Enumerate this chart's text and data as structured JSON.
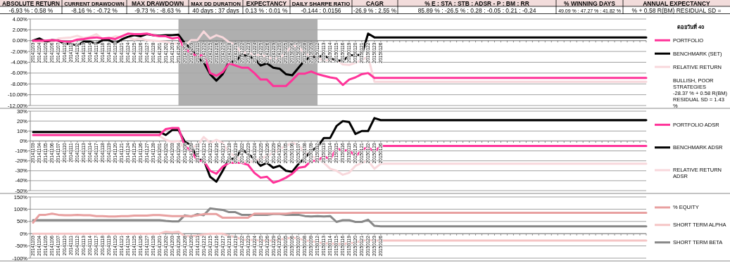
{
  "chart_data": [
    {
      "type": "other",
      "annotations": [
        "ABSOLUTE RETURN",
        "CURRENT DRAWDOWN",
        "MAX DRAWDOWN",
        "MAX DD DURATION",
        "EXPECTANCY",
        "DAILY SHARPE RATIO",
        "CAGR",
        "% E : STA : STB : ADSR - P : BM : RR",
        "% WINNING DAYS",
        "ANNUAL EXPECTANCY",
        "-6.93 % : 0.58 %",
        "-8.16 % : -0.72 %",
        "-9.73 % : -8.63 %",
        "40 days : 37 days",
        "0.13 % : 0.01 %",
        "-0.144 : 0.0156",
        "-26.9 % : 2.55 %",
        "85.89 % : -26.5 % : 0.28 : -0.05 : 0.21 : -0.24",
        "49.09 % : 47.27 % : 41.82 %",
        "% + 0.58 R(BM) RESIDUAL SD ="
      ]
    },
    {
      "type": "line",
      "legend_title": "ดอยวันที่ 40",
      "legend": "right",
      "grid": "y",
      "annotations": [
        "BULLISH, POOR STRATEGIES",
        "-28.37 % + 0.58 R(BM) RESIDUAL SD = 1.43 %"
      ],
      "categories": [
        "20141103",
        "20141104",
        "20141105",
        "20141106",
        "20141107",
        "20141110",
        "20141111",
        "20141112",
        "20141113",
        "20141114",
        "20141117",
        "20141118",
        "20141119",
        "20141120",
        "20141121",
        "20141124",
        "20141125",
        "20141126",
        "20141127",
        "20141128",
        "20141201",
        "20141202",
        "20141203",
        "20141204",
        "20141208",
        "20141209",
        "20141211",
        "20141212",
        "20141215",
        "20141216",
        "20141217",
        "20141218",
        "20141219",
        "20141222",
        "20141223",
        "20141224",
        "20141225",
        "20141226",
        "20141229",
        "20141230",
        "20150105",
        "20150106",
        "20150107",
        "20150108",
        "20150109",
        "20150112",
        "20150113",
        "20150114",
        "20150115",
        "20150116",
        "20150119",
        "20150120",
        "20150121",
        "20150122",
        "20150123",
        "20150126",
        null,
        null,
        null,
        null,
        null,
        null,
        null,
        null,
        null,
        null,
        null,
        null,
        null,
        null,
        null,
        null,
        null,
        null,
        null,
        null,
        null,
        null,
        null,
        null,
        null,
        null,
        null,
        null,
        null,
        null,
        null,
        null,
        null,
        null,
        null,
        null,
        null,
        null,
        null,
        null,
        null,
        null
      ],
      "ylim": [
        -12,
        4
      ],
      "yticks": [
        {
          "value": 4,
          "label": "4.00%"
        },
        {
          "value": 2,
          "label": "2.00%"
        },
        {
          "value": 0,
          "label": "0.00%"
        },
        {
          "value": -2,
          "label": "-2.00%"
        },
        {
          "value": -4,
          "label": "-4.00%"
        },
        {
          "value": -6,
          "label": "-6.00%"
        },
        {
          "value": -8,
          "label": "-8.00%"
        },
        {
          "value": -10,
          "label": "-10.00%"
        },
        {
          "value": -12,
          "label": "-12.00%"
        }
      ],
      "bands": [
        {
          "axis": "x",
          "from": "20141204",
          "to": "20150112",
          "color": "#a6a6a6"
        }
      ],
      "series": [
        {
          "name": "PORTFOLIO",
          "color": "#ff3399",
          "values": [
            0,
            0,
            0,
            0.1,
            0,
            -0.2,
            -0.2,
            0.2,
            0.3,
            0.5,
            0.6,
            0.4,
            0.5,
            0.3,
            0.8,
            1.3,
            1.2,
            1.2,
            1.3,
            1.0,
            0.8,
            0.8,
            0.4,
            0.6,
            -1.6,
            -2.2,
            -3.0,
            -2.5,
            -6.0,
            -6.5,
            -5.8,
            -4.2,
            -4.6,
            -5.0,
            -5.0,
            -6.0,
            -7.2,
            -7.2,
            -8.4,
            -8.4,
            -8.4,
            -7.3,
            -6.1,
            -6.1,
            -5.7,
            -6.2,
            -6.5,
            -6.8,
            -7.0,
            -8.2,
            -7.2,
            -6.8,
            -6.2,
            -6.0,
            -6.9,
            -6.9,
            -6.9,
            -6.9,
            -6.9,
            -6.9,
            -6.9,
            -6.9,
            -6.9,
            -6.9,
            -6.9,
            -6.9,
            -6.9,
            -6.9,
            -6.9,
            -6.9,
            -6.9,
            -6.9,
            -6.9,
            -6.9,
            -6.9,
            -6.9,
            -6.9,
            -6.9,
            -6.9,
            -6.9,
            -6.9,
            -6.9,
            -6.9,
            -6.9,
            -6.9,
            -6.9,
            -6.9,
            -6.9,
            -6.9,
            -6.9,
            -6.9,
            -6.9,
            -6.9,
            -6.9,
            -6.9,
            -6.9,
            -6.9,
            -6.9
          ]
        },
        {
          "name": "BENCHMARK (SET)",
          "color": "#000000",
          "values": [
            0,
            0.4,
            -0.2,
            0.1,
            0,
            -0.6,
            -0.6,
            -0.9,
            -0.2,
            -0.2,
            -0.6,
            0.1,
            0.1,
            -0.5,
            0.2,
            0.7,
            1.0,
            0.8,
            1.2,
            1.0,
            0.9,
            1.0,
            1.0,
            1.1,
            -0.5,
            -1.5,
            -3.2,
            -4.0,
            -6.2,
            -7.4,
            -6.2,
            -3.9,
            -3.9,
            -2.6,
            -2.9,
            -3.3,
            -4.6,
            -4.2,
            -5.0,
            -5.2,
            -6.2,
            -6.4,
            -5.0,
            -3.6,
            -3.0,
            -3.0,
            -2.8,
            -3.3,
            -3.6,
            -3.8,
            -2.7,
            -2.7,
            -2.6,
            1.3,
            0.6,
            0.6,
            0.6,
            0.6,
            0.6,
            0.6,
            0.6,
            0.6,
            0.6,
            0.6,
            0.6,
            0.6,
            0.6,
            0.6,
            0.6,
            0.6,
            0.6,
            0.6,
            0.6,
            0.6,
            0.6,
            0.6,
            0.6,
            0.6,
            0.6,
            0.6,
            0.6,
            0.6,
            0.6,
            0.6,
            0.6,
            0.6,
            0.6,
            0.6,
            0.6,
            0.6,
            0.6,
            0.6,
            0.6,
            0.6,
            0.6,
            0.6,
            0.6,
            0.6
          ]
        },
        {
          "name": "RELATIVE RETURN",
          "color": "#f8d8dc",
          "values": [
            0,
            -0.4,
            -0.2,
            -0.3,
            0.4,
            0.5,
            0.6,
            0.9,
            0.5,
            0.7,
            1.2,
            0.3,
            0.4,
            0.8,
            0.6,
            0.6,
            0.2,
            0.4,
            0.1,
            0,
            -0.1,
            -0.2,
            -0.6,
            -0.5,
            -1.0,
            0.1,
            0.1,
            1.7,
            0.4,
            1.0,
            0.6,
            -0.3,
            -0.7,
            -2.4,
            -2.1,
            -2.7,
            -2.6,
            -3.0,
            -3.4,
            -3.2,
            -2.2,
            -0.9,
            -1.1,
            -2.5,
            -2.7,
            -3.2,
            -3.7,
            -3.5,
            -3.4,
            -4.4,
            -4.5,
            -4.1,
            -3.6,
            -2.9,
            -7.6,
            -7.6,
            -7.6,
            -7.6,
            -7.6,
            -7.6,
            -7.6,
            -7.6,
            -7.6,
            -7.6,
            -7.6,
            -7.6,
            -7.6,
            -7.6,
            -7.6,
            -7.6,
            -7.6,
            -7.6,
            -7.6,
            -7.6,
            -7.6,
            -7.6,
            -7.6,
            -7.6,
            -7.6,
            -7.6,
            -7.6,
            -7.6,
            -7.6,
            -7.6,
            -7.6,
            -7.6,
            -7.6,
            -7.6,
            -7.6,
            -7.6,
            -7.6,
            -7.6,
            -7.6,
            -7.6,
            -7.6,
            -7.6,
            -7.6,
            -7.6
          ]
        }
      ]
    },
    {
      "type": "line",
      "legend": "right",
      "grid": "y",
      "categories": [
        "20141103",
        "20141104",
        "20141105",
        "20141106",
        "20141107",
        "20141110",
        "20141111",
        "20141112",
        "20141113",
        "20141114",
        "20141117",
        "20141118",
        "20141119",
        "20141120",
        "20141121",
        "20141124",
        "20141125",
        "20141126",
        "20141127",
        "20141128",
        "20141201",
        "20141202",
        "20141203",
        "20141204",
        "20141208",
        "20141209",
        "20141211",
        "20141212",
        "20141215",
        "20141216",
        "20141217",
        "20141218",
        "20141219",
        "20141222",
        "20141223",
        "20141224",
        "20141225",
        "20141226",
        "20141229",
        "20141230",
        "20150105",
        "20150106",
        "20150107",
        "20150108",
        "20150109",
        "20150112",
        "20150113",
        "20150114",
        "20150115",
        "20150116",
        "20150119",
        "20150120",
        "20150121",
        "20150122",
        "20150123",
        "20150126",
        null,
        null,
        null,
        null,
        null,
        null,
        null,
        null,
        null,
        null,
        null,
        null,
        null,
        null,
        null,
        null,
        null,
        null,
        null,
        null,
        null,
        null,
        null,
        null,
        null,
        null,
        null,
        null,
        null,
        null,
        null,
        null,
        null,
        null,
        null,
        null,
        null,
        null,
        null,
        null,
        null,
        null
      ],
      "ylim": [
        -50,
        30
      ],
      "yticks": [
        {
          "value": 30,
          "label": "30%"
        },
        {
          "value": 20,
          "label": "20%"
        },
        {
          "value": 10,
          "label": "10%"
        },
        {
          "value": 0,
          "label": "0%"
        },
        {
          "value": -10,
          "label": "-10%"
        },
        {
          "value": -20,
          "label": "-20%"
        },
        {
          "value": -30,
          "label": "-30%"
        },
        {
          "value": -40,
          "label": "-40%"
        },
        {
          "value": -50,
          "label": "-50%"
        }
      ],
      "series": [
        {
          "name": "PORTFOLIO ADSR",
          "color": "#ff3399",
          "values": [
            6,
            6,
            6,
            6,
            6,
            6,
            6,
            6,
            6,
            6,
            6,
            6,
            6,
            6,
            6,
            6,
            6,
            6,
            6,
            6,
            6,
            12,
            13,
            13,
            -5,
            -10,
            -20,
            -20,
            -30,
            -33,
            -26,
            -22,
            -22,
            -22,
            -24,
            -32,
            -37,
            -36,
            -42,
            -40,
            -37,
            -33,
            -27,
            -26,
            -20,
            -20,
            -15,
            -19,
            -7,
            -10,
            -9,
            -16,
            -9,
            -6,
            -11,
            -5,
            -5,
            -5,
            -5,
            -5,
            -5,
            -5,
            -5,
            -5,
            -5,
            -5,
            -5,
            -5,
            -5,
            -5,
            -5,
            -5,
            -5,
            -5,
            -5,
            -5,
            -5,
            -5,
            -5,
            -5,
            -5,
            -5,
            -5,
            -5,
            -5,
            -5,
            -5,
            -5,
            -5,
            -5,
            -5,
            -5,
            -5,
            -5,
            -5,
            -5,
            -5,
            -5
          ]
        },
        {
          "name": "BENCHMARK ADSR",
          "color": "#000000",
          "values": [
            9,
            9,
            9,
            9,
            9,
            9,
            9,
            9,
            9,
            9,
            9,
            9,
            9,
            9,
            9,
            9,
            9,
            9,
            9,
            9,
            9,
            6,
            11,
            11,
            -1,
            -4,
            -19,
            -19,
            -36,
            -41,
            -30,
            -18,
            -18,
            -8,
            -13,
            -18,
            -25,
            -22,
            -27,
            -25,
            -30,
            -31,
            -23,
            -17,
            -10,
            -6,
            3,
            3,
            15,
            20,
            19,
            7,
            10,
            10,
            23,
            21,
            21,
            21,
            21,
            21,
            21,
            21,
            21,
            21,
            21,
            21,
            21,
            21,
            21,
            21,
            21,
            21,
            21,
            21,
            21,
            21,
            21,
            21,
            21,
            21,
            21,
            21,
            21,
            21,
            21,
            21,
            21,
            21,
            21,
            21,
            21,
            21,
            21,
            21,
            21,
            21,
            21,
            21
          ]
        },
        {
          "name": "RELATIVE RETURN ADSR",
          "color": "#f8d8dc",
          "values": [
            null,
            null,
            null,
            null,
            null,
            null,
            null,
            null,
            null,
            null,
            null,
            null,
            null,
            null,
            null,
            null,
            null,
            null,
            null,
            null,
            5,
            1,
            -1,
            0,
            -8,
            -6,
            -5,
            4,
            -2,
            1,
            -2,
            -12,
            -15,
            -20,
            -22,
            -20,
            -18,
            -15,
            -12,
            -8,
            -5,
            -2,
            -4,
            -12,
            -15,
            -18,
            -22,
            -28,
            -30,
            -34,
            -32,
            -25,
            -22,
            -20,
            -28,
            -23,
            -23,
            -23,
            -23,
            -23,
            -23,
            -23,
            -23,
            -23,
            -23,
            -23,
            -23,
            -23,
            -23,
            -23,
            -23,
            -23,
            -23,
            -23,
            -23,
            -23,
            -23,
            -23,
            -23,
            -23,
            -23,
            -23,
            -23,
            -23,
            -23,
            -23,
            -23,
            -23,
            -23,
            -23,
            -23,
            -23,
            -23,
            -23,
            -23,
            -23,
            -23,
            -23
          ]
        }
      ]
    },
    {
      "type": "line",
      "legend": "right",
      "grid": "y",
      "categories": [
        "20141103",
        "20141104",
        "20141105",
        "20141106",
        "20141107",
        "20141110",
        "20141111",
        "20141112",
        "20141113",
        "20141114",
        "20141117",
        "20141118",
        "20141119",
        "20141120",
        "20141121",
        "20141124",
        "20141125",
        "20141126",
        "20141127",
        "20141128",
        "20141201",
        "20141202",
        "20141203",
        "20141204",
        "20141208",
        "20141209",
        "20141211",
        "20141212",
        "20141215",
        "20141216",
        "20141217",
        "20141218",
        "20141219",
        "20141222",
        "20141223",
        "20141224",
        "20141225",
        "20141226",
        "20141229",
        "20141230",
        "20150105",
        "20150106",
        "20150107",
        "20150108",
        "20150109",
        "20150112",
        "20150113",
        "20150114",
        "20150115",
        "20150116",
        "20150119",
        "20150120",
        "20150121",
        "20150122",
        "20150123",
        "20150126",
        null,
        null,
        null,
        null,
        null,
        null,
        null,
        null,
        null,
        null,
        null,
        null,
        null,
        null,
        null,
        null,
        null,
        null,
        null,
        null,
        null,
        null,
        null,
        null,
        null,
        null,
        null,
        null,
        null,
        null,
        null,
        null,
        null,
        null,
        null,
        null,
        null,
        null,
        null,
        null,
        null,
        null
      ],
      "ylim": [
        -100,
        150
      ],
      "yticks": [
        {
          "value": 150,
          "label": "150%"
        },
        {
          "value": 100,
          "label": "100%"
        },
        {
          "value": 50,
          "label": "50%"
        },
        {
          "value": 0,
          "label": "0%"
        },
        {
          "value": -50,
          "label": "-50%"
        },
        {
          "value": -100,
          "label": "-100%"
        }
      ],
      "series": [
        {
          "name": "% EQUITY",
          "color": "#e8a0a0",
          "values": [
            45,
            77,
            77,
            82,
            77,
            75,
            75,
            77,
            75,
            75,
            72,
            72,
            70,
            70,
            72,
            72,
            74,
            74,
            74,
            76,
            76,
            74,
            72,
            72,
            72,
            72,
            75,
            80,
            80,
            80,
            65,
            65,
            65,
            65,
            65,
            82,
            82,
            82,
            82,
            82,
            82,
            85,
            85,
            85,
            85,
            85,
            85,
            85,
            85,
            85,
            85,
            85,
            85,
            85,
            85,
            85,
            85,
            85,
            85,
            85,
            85,
            85,
            85,
            85,
            85,
            85,
            85,
            85,
            85,
            85,
            85,
            85,
            85,
            85,
            85,
            85,
            85,
            85,
            85,
            85,
            85,
            85,
            85,
            85,
            85,
            85,
            85,
            85,
            85,
            85,
            85,
            85,
            85,
            85,
            85,
            85,
            85,
            85
          ]
        },
        {
          "name": "SHORT TERM ALPHA",
          "color": "#f5c5c5",
          "values": [
            0,
            0,
            0,
            0,
            0,
            0,
            0,
            0,
            0,
            0,
            0,
            0,
            0,
            0,
            0,
            0,
            0,
            0,
            0,
            0,
            0,
            8,
            5,
            8,
            -10,
            -10,
            -8,
            -3,
            0,
            0,
            0,
            -10,
            -12,
            -25,
            -25,
            -25,
            -28,
            -28,
            -28,
            -25,
            -20,
            -15,
            -20,
            -28,
            -30,
            -35,
            -40,
            -40,
            -42,
            -42,
            -40,
            -35,
            -30,
            -25,
            -28,
            -28,
            -28,
            -28,
            -28,
            -28,
            -28,
            -28,
            -28,
            -28,
            -28,
            -28,
            -28,
            -28,
            -28,
            -28,
            -28,
            -28,
            -28,
            -28,
            -28,
            -28,
            -28,
            -28,
            -28,
            -28,
            -28,
            -28,
            -28,
            -28,
            -28,
            -28,
            -28,
            -28,
            -28,
            -28,
            -28,
            -28,
            -28,
            -28,
            -28,
            -28,
            -28,
            -28
          ]
        },
        {
          "name": "SHORT TERM BETA",
          "color": "#888888",
          "values": [
            55,
            55,
            55,
            55,
            55,
            55,
            55,
            55,
            55,
            55,
            55,
            55,
            55,
            55,
            55,
            55,
            55,
            55,
            55,
            55,
            55,
            52,
            50,
            50,
            75,
            70,
            80,
            75,
            103,
            100,
            97,
            88,
            88,
            77,
            77,
            77,
            77,
            77,
            80,
            80,
            77,
            77,
            77,
            72,
            70,
            72,
            70,
            72,
            48,
            55,
            55,
            48,
            48,
            57,
            32,
            30,
            30,
            30,
            30,
            30,
            30,
            30,
            30,
            30,
            30,
            30,
            30,
            30,
            30,
            30,
            30,
            30,
            30,
            30,
            30,
            30,
            30,
            30,
            30,
            30,
            30,
            30,
            30,
            30,
            30,
            30,
            30,
            30,
            30,
            30,
            30,
            30,
            30,
            30,
            30,
            30,
            30,
            30
          ]
        }
      ]
    }
  ]
}
